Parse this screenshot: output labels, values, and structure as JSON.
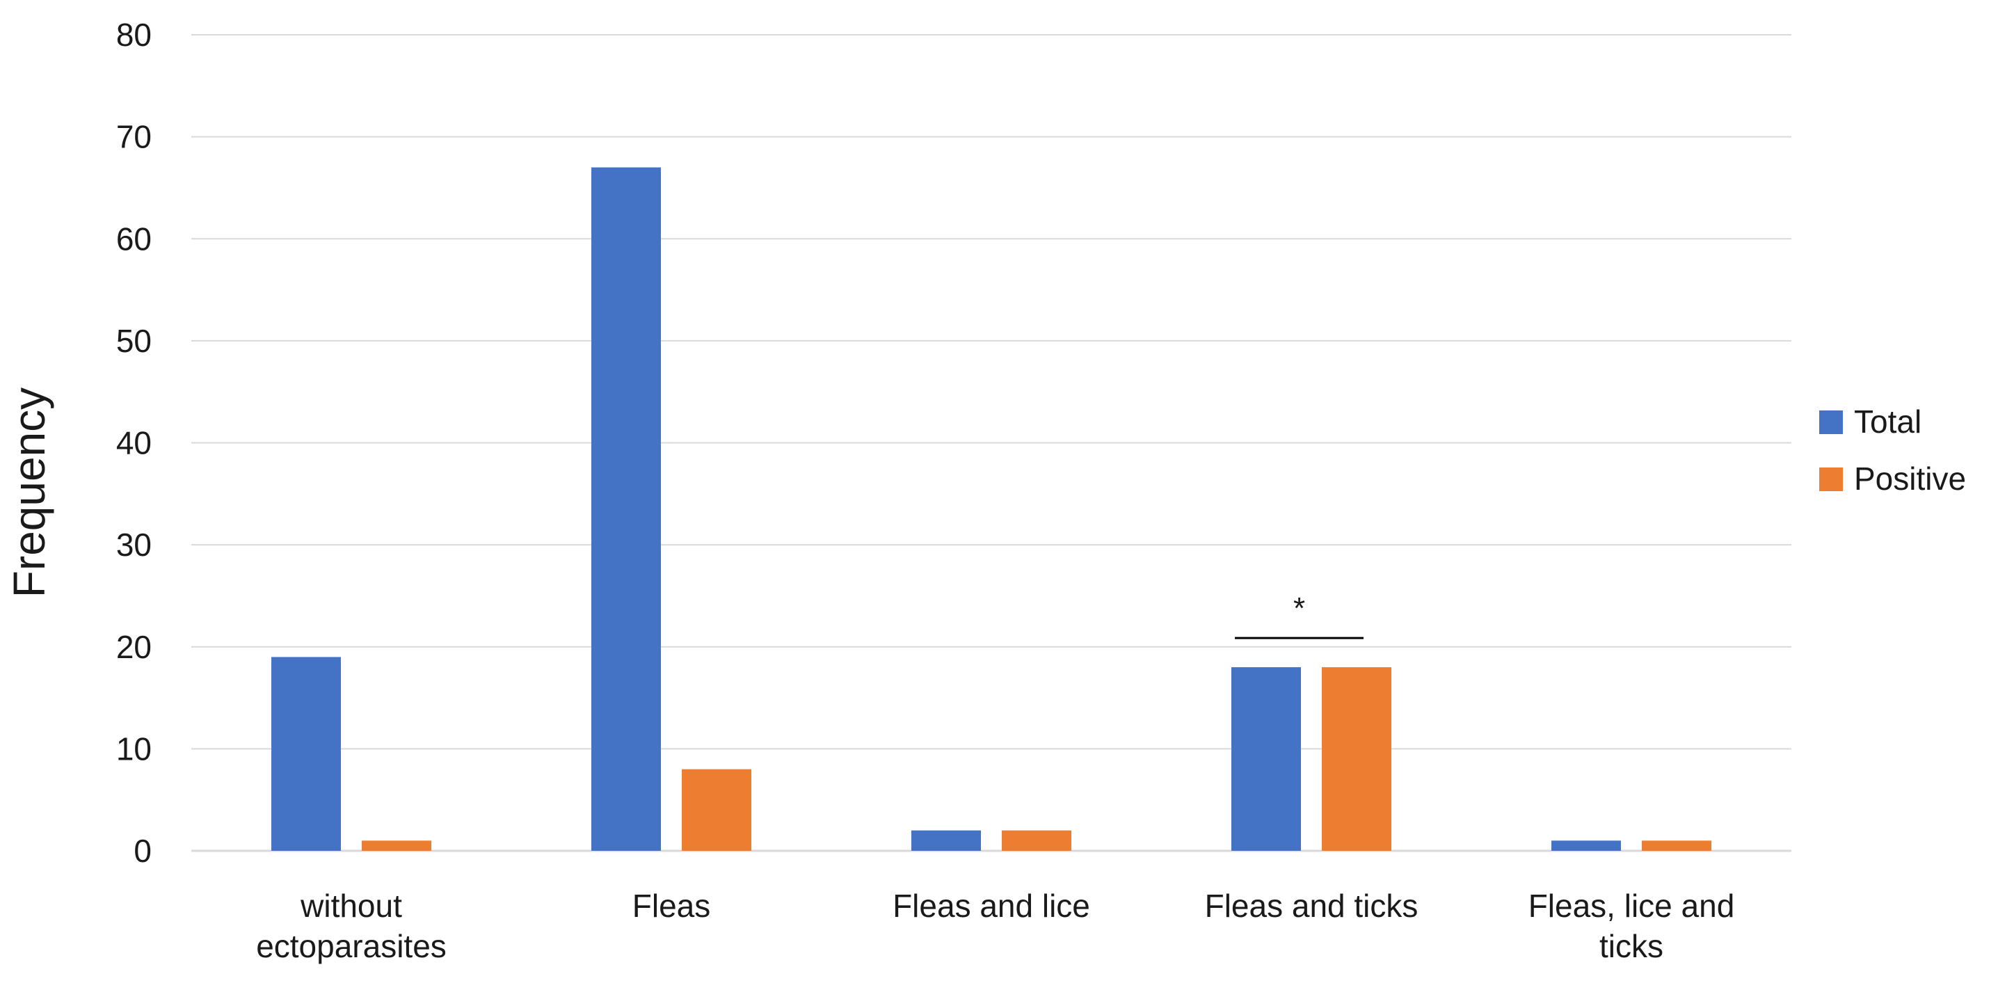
{
  "chart_data": {
    "type": "bar",
    "title": "",
    "xlabel": "",
    "ylabel": "Frequency",
    "ylim": [
      0,
      80
    ],
    "yticks": [
      0,
      10,
      20,
      30,
      40,
      50,
      60,
      70,
      80
    ],
    "grid": true,
    "legend_position": "right",
    "categories": [
      [
        "without",
        "ectoparasites"
      ],
      [
        "Fleas"
      ],
      [
        "Fleas and lice"
      ],
      [
        "Fleas and ticks"
      ],
      [
        "Fleas, lice and",
        "ticks"
      ]
    ],
    "series": [
      {
        "name": "Total",
        "color": "#4472C4",
        "values": [
          19,
          67,
          2,
          18,
          1
        ]
      },
      {
        "name": "Positive",
        "color": "#ED7D31",
        "values": [
          1,
          8,
          2,
          18,
          1
        ]
      }
    ],
    "annotations": [
      {
        "text": "*",
        "category_index": 3,
        "type": "significance-bracket"
      }
    ]
  }
}
